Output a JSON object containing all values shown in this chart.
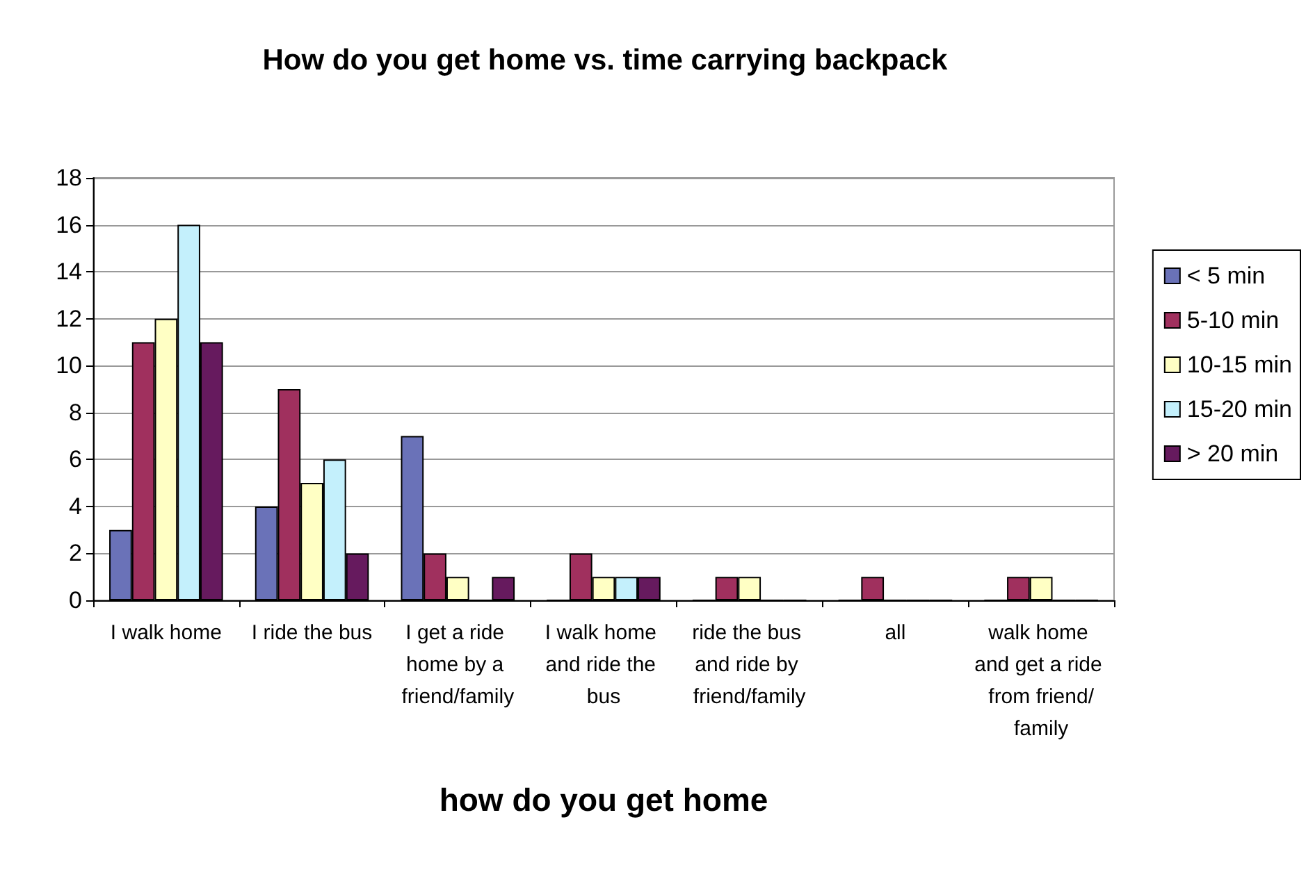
{
  "chart_data": {
    "type": "bar",
    "title": "How do you get home vs. time carrying backpack",
    "xlabel": "how do you get home",
    "categories": [
      "I walk home",
      "I ride the bus",
      "I get a ride home by a friend/family",
      "I walk home and ride the bus",
      "ride the bus and ride by friend/family",
      "all",
      "walk home and get a ride from friend/family"
    ],
    "series": [
      {
        "name": "< 5 min",
        "color": "#6a72b8",
        "values": [
          3,
          4,
          7,
          0,
          0,
          0,
          0
        ]
      },
      {
        "name": "5-10 min",
        "color": "#a0305e",
        "values": [
          11,
          9,
          2,
          2,
          1,
          1,
          1
        ]
      },
      {
        "name": "10-15 min",
        "color": "#ffffc4",
        "values": [
          12,
          5,
          1,
          1,
          1,
          0,
          1
        ]
      },
      {
        "name": "15-20 min",
        "color": "#c4f0fc",
        "values": [
          16,
          6,
          0,
          1,
          0,
          0,
          0
        ]
      },
      {
        "name": "> 20 min",
        "color": "#661a5e",
        "values": [
          11,
          2,
          1,
          1,
          0,
          0,
          0
        ]
      }
    ],
    "ylim": [
      0,
      18
    ],
    "yticks": [
      0,
      2,
      4,
      6,
      8,
      10,
      12,
      14,
      16,
      18
    ],
    "grid": "y",
    "legend": "right"
  }
}
